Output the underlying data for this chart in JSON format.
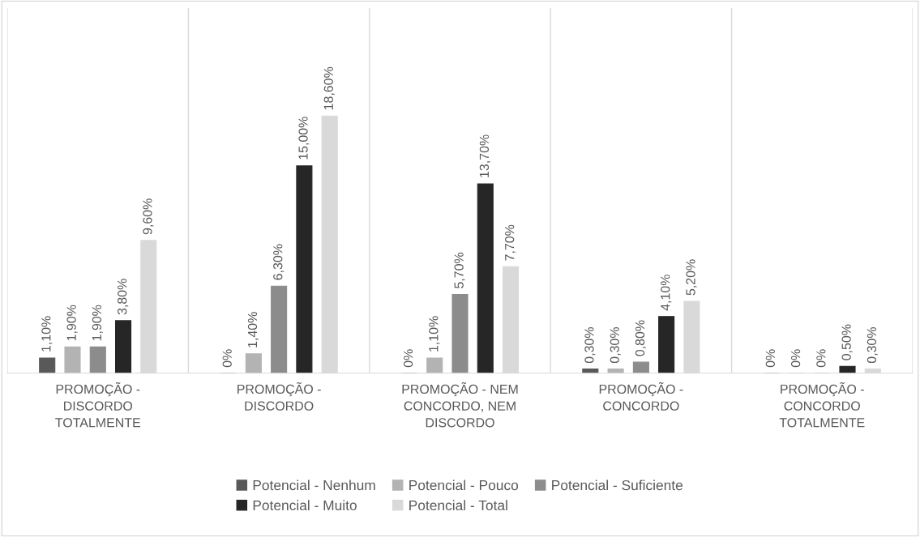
{
  "chart_data": {
    "type": "bar",
    "categories": [
      "PROMOÇÃO -\nDISCORDO\nTOTALMENTE",
      "PROMOÇÃO -\nDISCORDO",
      "PROMOÇÃO - NEM\nCONCORDO, NEM\nDISCORDO",
      "PROMOÇÃO -\nCONCORDO",
      "PROMOÇÃO -\nCONCORDO\nTOTALMENTE"
    ],
    "series": [
      {
        "name": "Potencial - Nenhum",
        "color": "#595959",
        "values": [
          1.1,
          0,
          0,
          0.3,
          0
        ],
        "value_labels": [
          "1,10%",
          "0%",
          "0%",
          "0,30%",
          "0%"
        ]
      },
      {
        "name": "Potencial - Pouco",
        "color": "#b3b3b3",
        "values": [
          1.9,
          1.4,
          1.1,
          0.3,
          0
        ],
        "value_labels": [
          "1,90%",
          "1,40%",
          "1,10%",
          "0,30%",
          "0%"
        ]
      },
      {
        "name": "Potencial - Suficiente",
        "color": "#8c8c8c",
        "values": [
          1.9,
          6.3,
          5.7,
          0.8,
          0
        ],
        "value_labels": [
          "1,90%",
          "6,30%",
          "5,70%",
          "0,80%",
          "0%"
        ]
      },
      {
        "name": "Potencial - Muito",
        "color": "#262626",
        "values": [
          3.8,
          15.0,
          13.7,
          4.1,
          0.5
        ],
        "value_labels": [
          "3,80%",
          "15,00%",
          "13,70%",
          "4,10%",
          "0,50%"
        ]
      },
      {
        "name": "Potencial - Total",
        "color": "#d9d9d9",
        "values": [
          9.6,
          18.6,
          7.7,
          5.2,
          0.3
        ],
        "value_labels": [
          "9,60%",
          "18,60%",
          "7,70%",
          "5,20%",
          "0,30%"
        ]
      }
    ],
    "grid": "x",
    "legend": "bottom"
  }
}
